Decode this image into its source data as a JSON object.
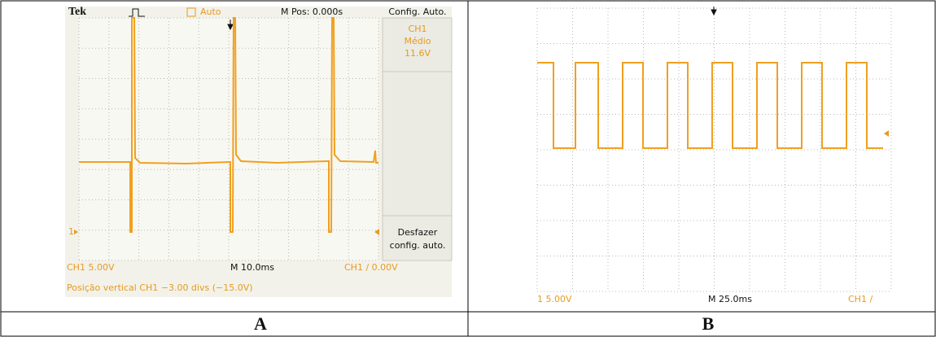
{
  "panels": [
    {
      "label": "A",
      "top": {
        "brand": "Tek",
        "mode": "Auto",
        "position": "M Pos: 0.000s",
        "menu_title": "Config. Auto."
      },
      "side": {
        "measure": [
          "CH1",
          "Médio",
          "11.6V"
        ],
        "button": [
          "Desfazer",
          "config. auto."
        ]
      },
      "marker": "1",
      "bottom": {
        "channel": "CH1  5.00V",
        "timebase": "M 10.0ms",
        "trigger": "CH1 / 0.00V",
        "message": "Posição vertical CH1 −3.00 divs (−15.0V)"
      }
    },
    {
      "label": "B",
      "bottom": {
        "channel": "1  5.00V",
        "timebase": "M 25.0ms",
        "trigger": "CH1 /"
      }
    }
  ]
}
